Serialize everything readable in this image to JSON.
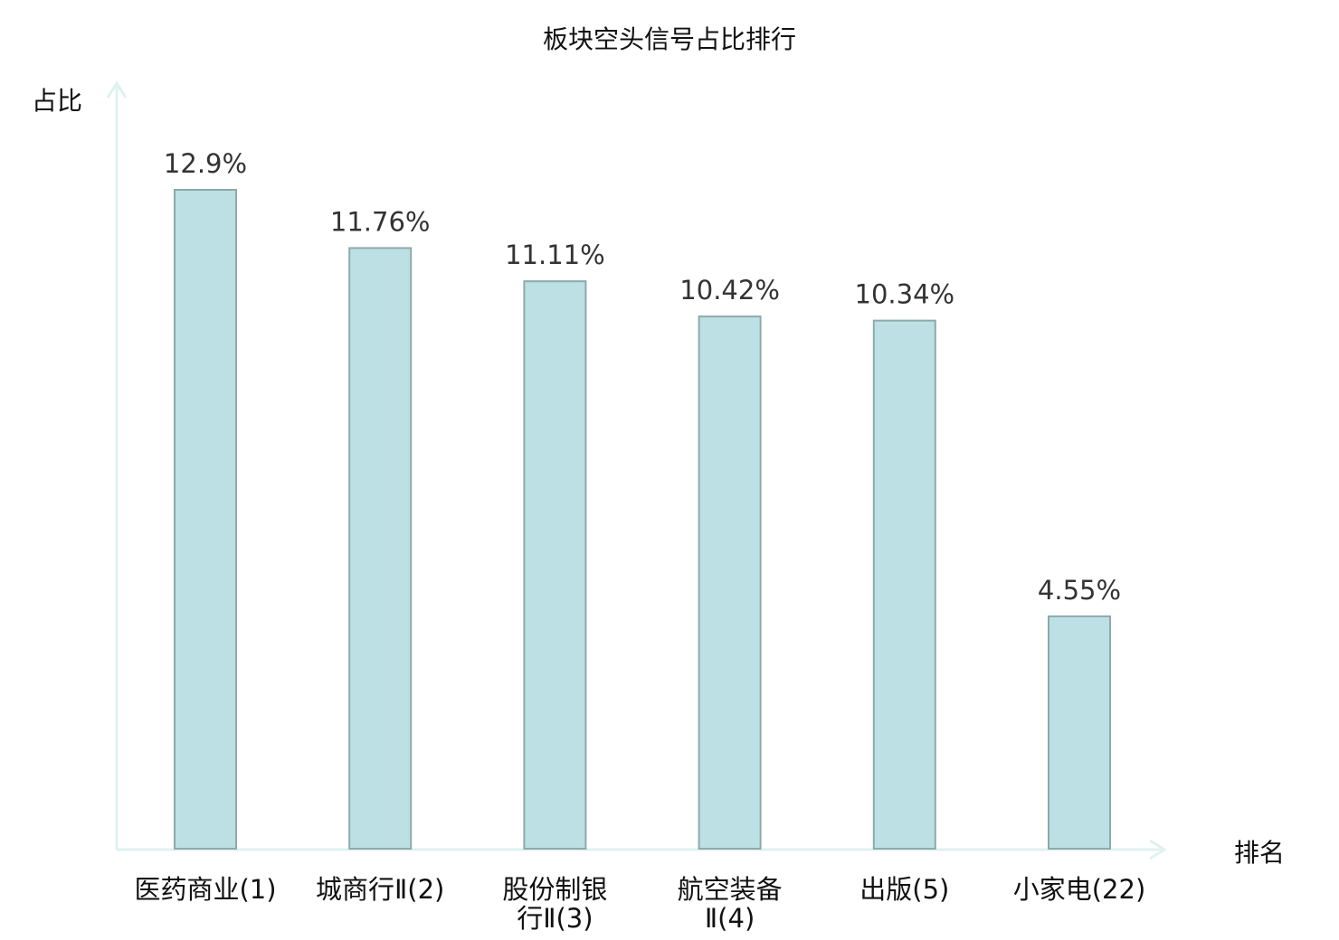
{
  "chart_data": {
    "type": "bar",
    "title": "板块空头信号占比排行",
    "xlabel": "排名",
    "ylabel": "占比",
    "categories": [
      "医药商业(1)",
      "城商行Ⅱ(2)",
      "股份制银行Ⅱ(3)",
      "航空装备Ⅱ(4)",
      "出版(5)",
      "小家电(22)"
    ],
    "values": [
      12.9,
      11.76,
      11.11,
      10.42,
      10.34,
      4.55
    ],
    "value_labels": [
      "12.9%",
      "11.76%",
      "11.11%",
      "10.42%",
      "10.34%",
      "4.55%"
    ],
    "highlight_category": "小家电(22)",
    "ylim": [
      0,
      12.9
    ],
    "grid": false,
    "legend": "none",
    "colors": {
      "bar_fill": "#bce0e3",
      "bar_stroke": "#8fa9aa",
      "axis": "#dff2f0",
      "highlight_label": "#ee1111",
      "label": "#111111",
      "value_label": "#333333"
    }
  }
}
